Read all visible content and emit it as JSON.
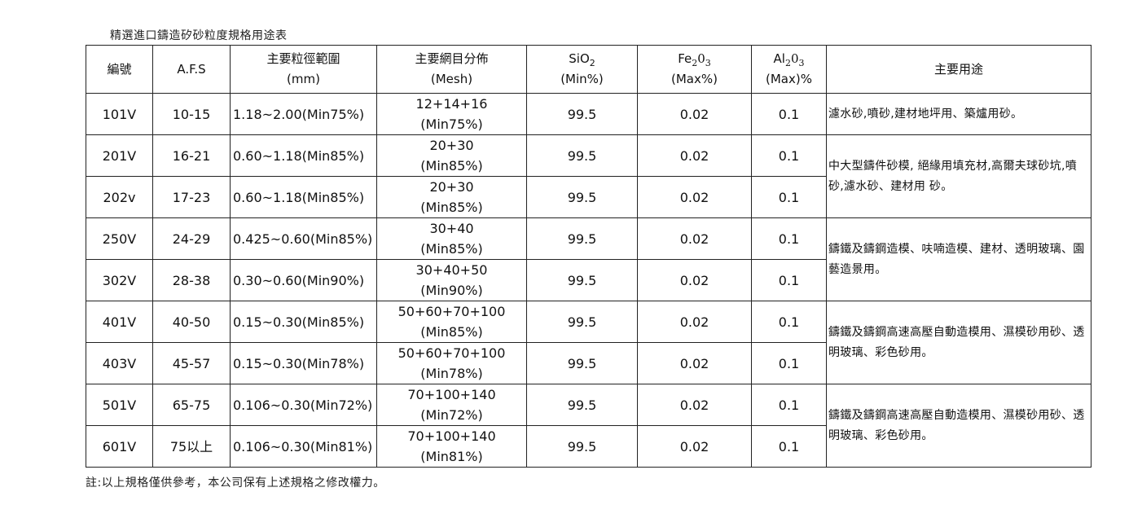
{
  "title": "精選進口鑄造矽砂粒度規格用途表",
  "header": {
    "code": "編號",
    "afs": "A.F.S",
    "size_line1": "主要粒徑範圍",
    "size_line2": "(mm)",
    "mesh_line1": "主要網目分佈",
    "mesh_line2": "(Mesh)",
    "sio2_main": "SiO",
    "sio2_sub": "2",
    "sio2_unit": "(Min%)",
    "fe_main": "Fe",
    "fe_sub": "2",
    "fe_rest": "0",
    "fe_sub2": "3",
    "fe_unit": "(Max%)",
    "al_main": "Al",
    "al_sub": "2",
    "al_rest": "0",
    "al_sub2": "3",
    "al_unit": "(Max)%",
    "usage": "主要用途"
  },
  "rows": [
    {
      "code": "101V",
      "afs": "10-15",
      "size": "1.18~2.00(Min75%)",
      "mesh1": "12+14+16",
      "mesh2": "(Min75%)",
      "sio2": "99.5",
      "fe2o3": "0.02",
      "al2o3": "0.1"
    },
    {
      "code": "201V",
      "afs": "16-21",
      "size": "0.60~1.18(Min85%)",
      "mesh1": "20+30",
      "mesh2": "(Min85%)",
      "sio2": "99.5",
      "fe2o3": "0.02",
      "al2o3": "0.1"
    },
    {
      "code": "202v",
      "afs": "17-23",
      "size": "0.60~1.18(Min85%)",
      "mesh1": "20+30",
      "mesh2": "(Min85%)",
      "sio2": "99.5",
      "fe2o3": "0.02",
      "al2o3": "0.1"
    },
    {
      "code": "250V",
      "afs": "24-29",
      "size": "0.425~0.60(Min85%)",
      "mesh1": "30+40",
      "mesh2": "(Min85%)",
      "sio2": "99.5",
      "fe2o3": "0.02",
      "al2o3": "0.1"
    },
    {
      "code": "302V",
      "afs": "28-38",
      "size": "0.30~0.60(Min90%)",
      "mesh1": "30+40+50",
      "mesh2": "(Min90%)",
      "sio2": "99.5",
      "fe2o3": "0.02",
      "al2o3": "0.1"
    },
    {
      "code": "401V",
      "afs": "40-50",
      "size": "0.15~0.30(Min85%)",
      "mesh1": "50+60+70+100",
      "mesh2": "(Min85%)",
      "sio2": "99.5",
      "fe2o3": "0.02",
      "al2o3": "0.1"
    },
    {
      "code": "403V",
      "afs": "45-57",
      "size": "0.15~0.30(Min78%)",
      "mesh1": "50+60+70+100",
      "mesh2": "(Min78%)",
      "sio2": "99.5",
      "fe2o3": "0.02",
      "al2o3": "0.1"
    },
    {
      "code": "501V",
      "afs": "65-75",
      "size": "0.106~0.30(Min72%)",
      "mesh1": "70+100+140",
      "mesh2": "(Min72%)",
      "sio2": "99.5",
      "fe2o3": "0.02",
      "al2o3": "0.1"
    },
    {
      "code": "601V",
      "afs": "75以上",
      "size": "0.106~0.30(Min81%)",
      "mesh1": "70+100+140",
      "mesh2": "(Min81%)",
      "sio2": "99.5",
      "fe2o3": "0.02",
      "al2o3": "0.1"
    }
  ],
  "usages": [
    "濾水砂,噴砂,建材地坪用、築爐用砂。",
    "中大型鑄件砂模, 絕緣用填充材,高爾夫球砂坑,噴砂,濾水砂、建材用 砂。",
    "鑄鐵及鑄鋼造模、呋喃造模、建材、透明玻璃、園藝造景用。",
    "鑄鐵及鑄鋼高速高壓自動造模用、濕模砂用砂、透明玻璃、彩色砂用。",
    "鑄鐵及鑄鋼高速高壓自動造模用、濕模砂用砂、透明玻璃、彩色砂用。"
  ],
  "note": "註:以上規格僅供參考，本公司保有上述規格之修改權力。"
}
